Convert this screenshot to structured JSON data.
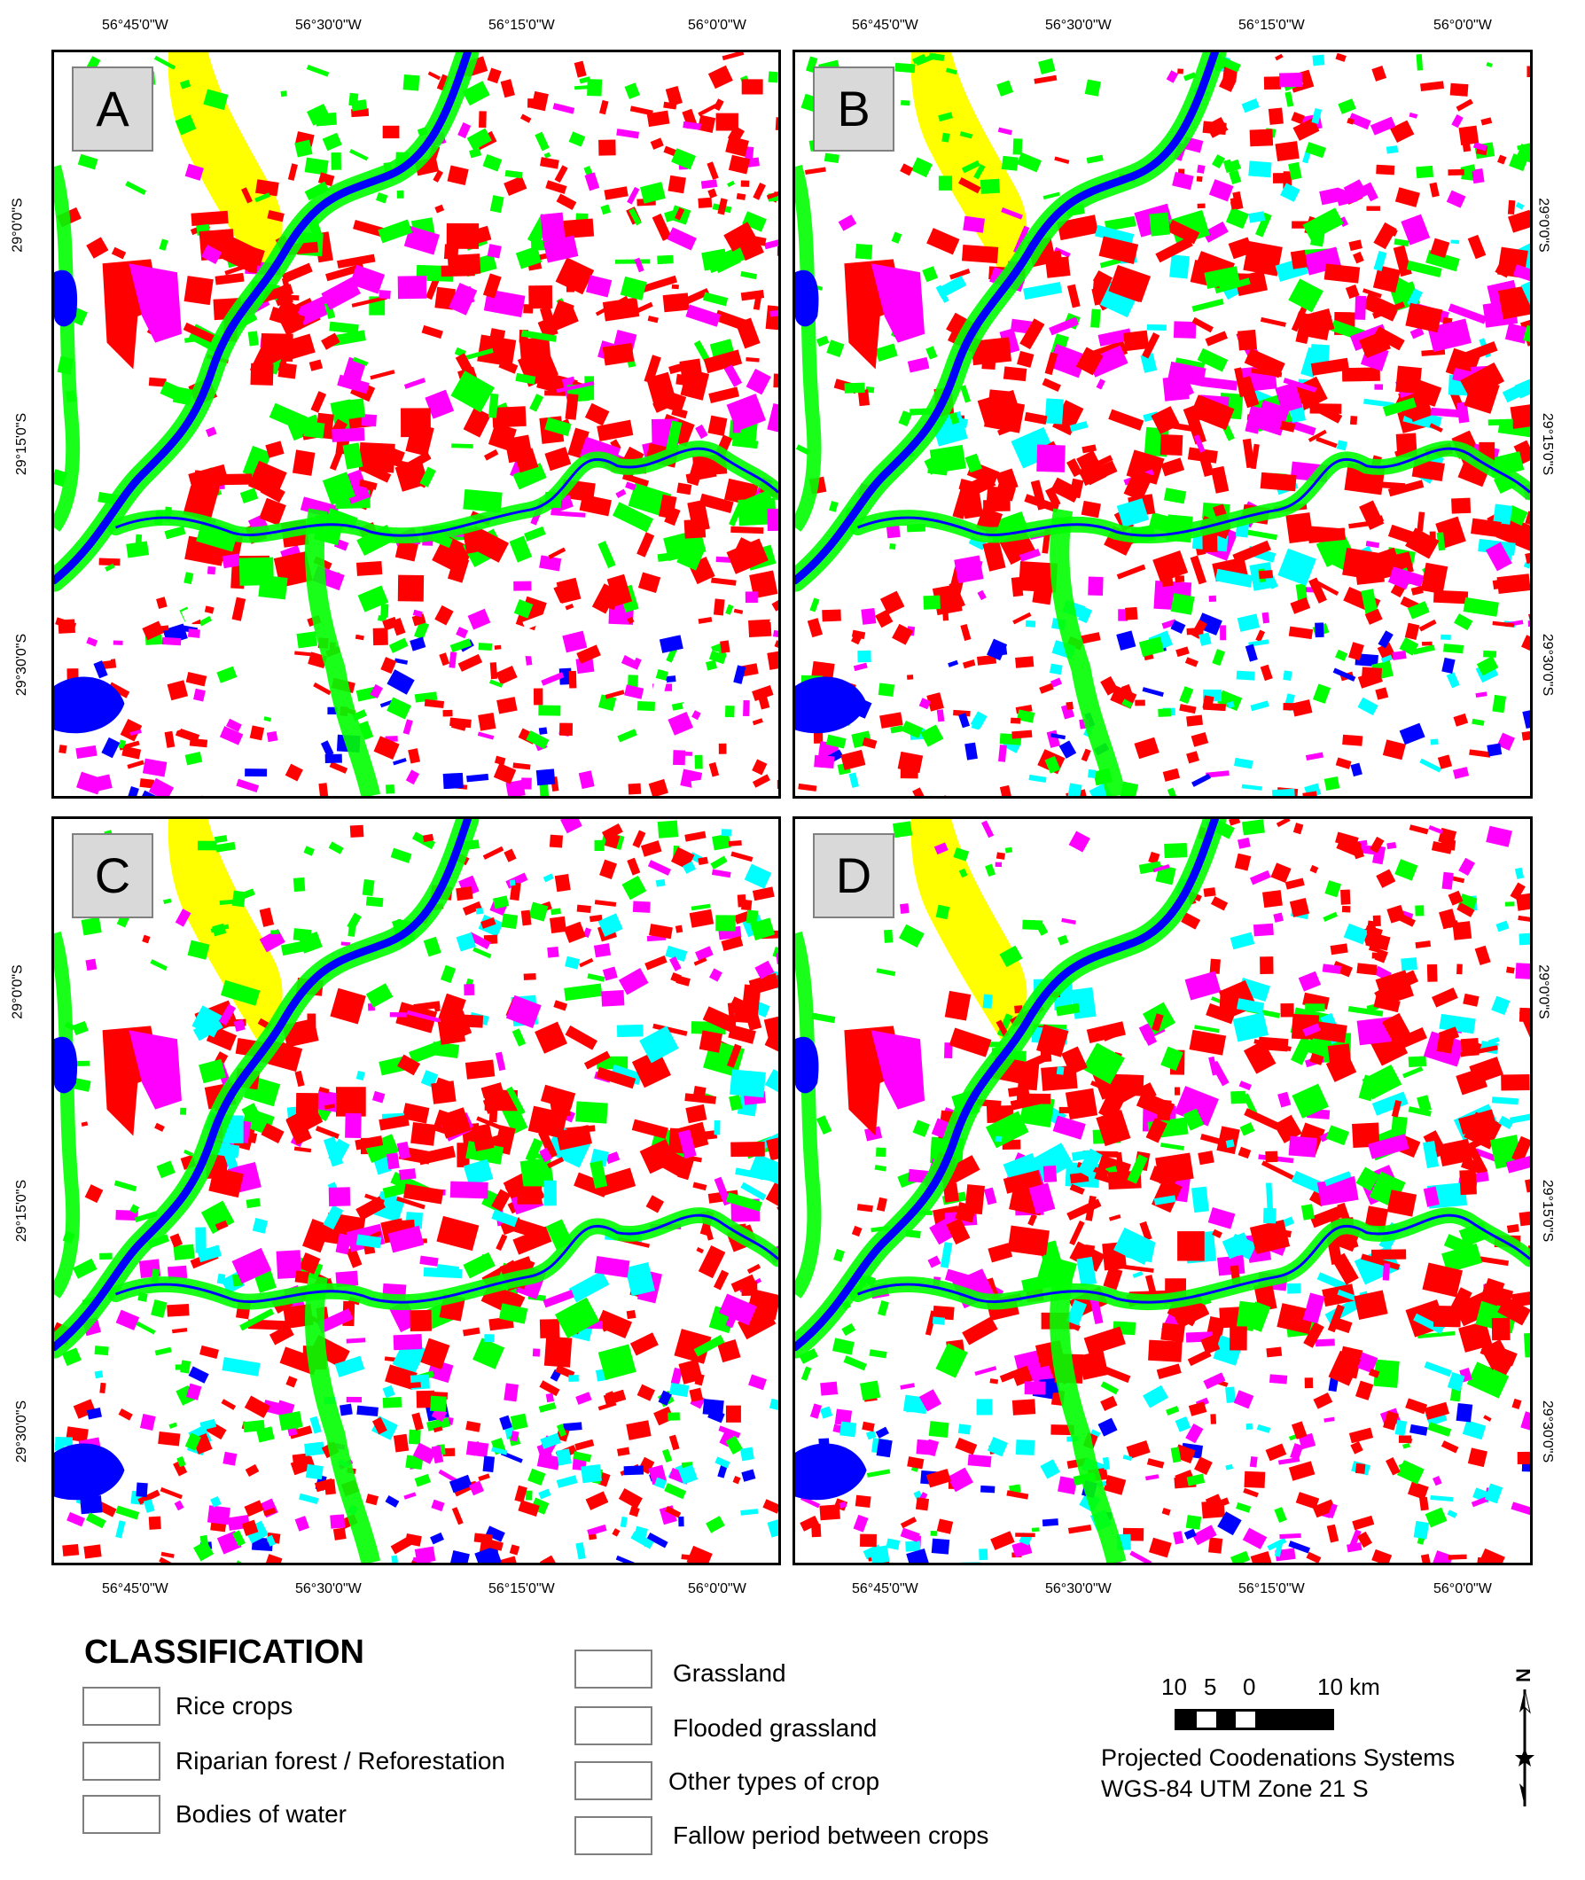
{
  "panels": [
    {
      "label": "A"
    },
    {
      "label": "B"
    },
    {
      "label": "C"
    },
    {
      "label": "D"
    }
  ],
  "longitude_ticks": [
    "56°45'0\"W",
    "56°30'0\"W",
    "56°15'0\"W",
    "56°0'0\"W"
  ],
  "latitude_ticks": [
    "29°0'0\"S",
    "29°15'0\"S",
    "29°30'0\"S"
  ],
  "legend": {
    "title": "CLASSIFICATION",
    "classes": [
      {
        "label": "Rice crops",
        "color": "#ff0000"
      },
      {
        "label": "Riparian forest / Reforestation",
        "color": "#00ff00"
      },
      {
        "label": "Bodies of water",
        "color": "#0000ff"
      },
      {
        "label": "Grassland",
        "color": "#ffffff"
      },
      {
        "label": "Flooded grassland",
        "color": "#ffff00"
      },
      {
        "label": "Other types of crop",
        "color": "#00ffff"
      },
      {
        "label": "Fallow period between crops",
        "color": "#ff00ff"
      }
    ]
  },
  "scale": {
    "ticks": [
      "10",
      "5",
      "0",
      "10 km"
    ]
  },
  "projection": {
    "line1": "Projected Coodenations Systems",
    "line2": "WGS-84 UTM Zone 21 S"
  },
  "north_arrow": {
    "letter": "N",
    "icon": "north-arrow-icon"
  }
}
